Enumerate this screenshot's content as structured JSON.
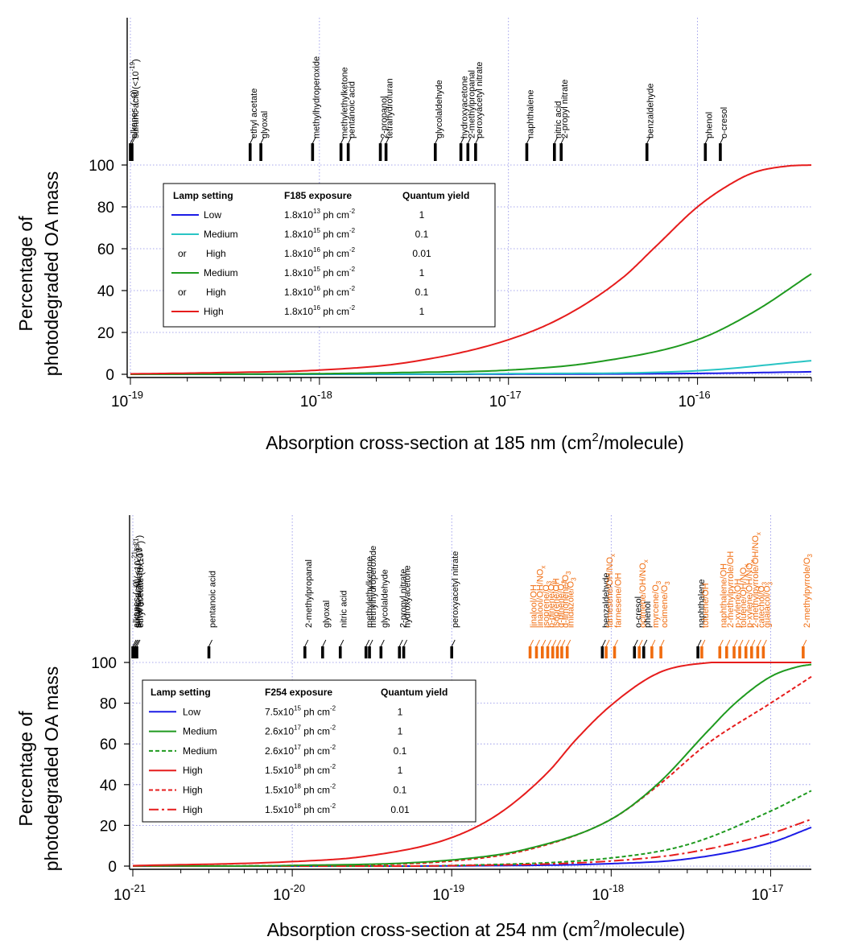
{
  "chart_data": [
    {
      "type": "line",
      "ylabel": [
        "Percentage of",
        "photodegraded OA mass"
      ],
      "xlabel": "Absorption cross-section at 185 nm (cm²/molecule)",
      "xscale": "log",
      "xlim": [
        1e-19,
        4e-16
      ],
      "ylim": [
        0,
        100
      ],
      "yticks": [
        0,
        20,
        40,
        60,
        80,
        100
      ],
      "xticks": [
        {
          "value": 1e-19,
          "mant": "10",
          "exp": "-19"
        },
        {
          "value": 1e-18,
          "mant": "10",
          "exp": "-18"
        },
        {
          "value": 1e-17,
          "mant": "10",
          "exp": "-17"
        },
        {
          "value": 1e-16,
          "mant": "10",
          "exp": "-16"
        }
      ],
      "grid": true,
      "legend": {
        "placement": "upper-left",
        "headers": [
          "Lamp setting",
          "F185 exposure",
          "Quantum yield"
        ],
        "rows": [
          {
            "prefix": "",
            "setting": "Low",
            "exp_mant": "1.8x10",
            "exp_pow": "13",
            "unit": " ph cm",
            "unit_pow": "-2",
            "qy": "1",
            "color": "#1c1ce6",
            "dash": "none"
          },
          {
            "prefix": "",
            "setting": "Medium",
            "exp_mant": "1.8x10",
            "exp_pow": "15",
            "unit": " ph cm",
            "unit_pow": "-2",
            "qy": "0.1",
            "color": "#29c4c4",
            "dash": "none"
          },
          {
            "prefix": "or",
            "setting": "High",
            "exp_mant": "1.8x10",
            "exp_pow": "16",
            "unit": " ph cm",
            "unit_pow": "-2",
            "qy": "0.01",
            "color": null,
            "dash": "none"
          },
          {
            "prefix": "",
            "setting": "Medium",
            "exp_mant": "1.8x10",
            "exp_pow": "15",
            "unit": " ph cm",
            "unit_pow": "-2",
            "qy": "1",
            "color": "#1f9a1f",
            "dash": "none"
          },
          {
            "prefix": "or",
            "setting": "High",
            "exp_mant": "1.8x10",
            "exp_pow": "16",
            "unit": " ph cm",
            "unit_pow": "-2",
            "qy": "0.1",
            "color": null,
            "dash": "none"
          },
          {
            "prefix": "",
            "setting": "High",
            "exp_mant": "1.8x10",
            "exp_pow": "16",
            "unit": " ph cm",
            "unit_pow": "-2",
            "qy": "1",
            "color": "#e61c1c",
            "dash": "none"
          }
        ]
      },
      "series": [
        {
          "color": "#1c1ce6",
          "dash": "none",
          "x": [
            1e-19,
            1e-18,
            1e-17,
            1e-16,
            4e-16
          ],
          "y": [
            0,
            0,
            0.05,
            0.4,
            1.2
          ]
        },
        {
          "color": "#29c4c4",
          "dash": "none",
          "x": [
            1e-19,
            1e-18,
            1e-17,
            1e-16,
            4e-16
          ],
          "y": [
            0,
            0.1,
            0.3,
            1.7,
            6.5
          ]
        },
        {
          "color": "#1f9a1f",
          "dash": "none",
          "x": [
            1e-19,
            1e-18,
            3e-18,
            1e-17,
            3e-17,
            1e-16,
            2e-16,
            4e-16
          ],
          "y": [
            0,
            0.3,
            0.9,
            2.0,
            6.0,
            16.5,
            30,
            48
          ]
        },
        {
          "color": "#e61c1c",
          "dash": "none",
          "x": [
            1e-19,
            3e-19,
            1e-18,
            3e-18,
            1e-17,
            2e-17,
            4e-17,
            6e-17,
            1e-16,
            1.5e-16,
            2e-16,
            3e-16,
            4e-16
          ],
          "y": [
            0.2,
            0.8,
            2.0,
            5.8,
            16.5,
            28,
            46,
            61,
            80,
            91,
            96.5,
            99.5,
            100
          ]
        }
      ],
      "compounds": [
        {
          "name": "alkanes (~0)",
          "x": 1e-19,
          "color": "#000000"
        },
        {
          "name": "sulfuric acid (<10",
          "sup": "-19",
          "suffix": ")",
          "x": 1.02e-19,
          "color": "#000000"
        },
        {
          "name": "ethyl acetate",
          "x": 4.3e-19,
          "color": "#000000"
        },
        {
          "name": "glyoxal",
          "x": 4.9e-19,
          "color": "#000000"
        },
        {
          "name": "methylhydroperoxide",
          "x": 9.2e-19,
          "color": "#000000"
        },
        {
          "name": "methylethylketone",
          "x": 1.3e-18,
          "color": "#000000"
        },
        {
          "name": "pentanoic acid",
          "x": 1.42e-18,
          "color": "#000000"
        },
        {
          "name": "2-propanol",
          "x": 2.1e-18,
          "color": "#000000"
        },
        {
          "name": "tetrahydrofuran",
          "x": 2.25e-18,
          "color": "#000000"
        },
        {
          "name": "glycolaldehyde",
          "x": 4.1e-18,
          "color": "#000000"
        },
        {
          "name": "hydroxyacetone",
          "x": 5.6e-18,
          "color": "#000000"
        },
        {
          "name": "2-methylpropanal",
          "x": 6.1e-18,
          "color": "#000000"
        },
        {
          "name": "peroxyacetyl nitrate",
          "x": 6.7e-18,
          "color": "#000000"
        },
        {
          "name": "naphthalene",
          "x": 1.25e-17,
          "color": "#000000"
        },
        {
          "name": "nitric acid",
          "x": 1.75e-17,
          "color": "#000000"
        },
        {
          "name": "2-propyl nitrate",
          "x": 1.9e-17,
          "color": "#000000"
        },
        {
          "name": "benzaldehyde",
          "x": 5.4e-17,
          "color": "#000000"
        },
        {
          "name": "phenol",
          "x": 1.1e-16,
          "color": "#000000"
        },
        {
          "name": "o-cresol",
          "x": 1.32e-16,
          "color": "#000000"
        }
      ]
    },
    {
      "type": "line",
      "ylabel": [
        "Percentage of",
        "photodegraded OA mass"
      ],
      "xlabel": "Absorption cross-section at 254 nm (cm²/molecule)",
      "xscale": "log",
      "xlim": [
        1e-21,
        1.8e-17
      ],
      "ylim": [
        0,
        100
      ],
      "yticks": [
        0,
        20,
        40,
        60,
        80,
        100
      ],
      "xticks": [
        {
          "value": 1e-21,
          "mant": "10",
          "exp": "-21"
        },
        {
          "value": 1e-20,
          "mant": "10",
          "exp": "-20"
        },
        {
          "value": 1e-19,
          "mant": "10",
          "exp": "-19"
        },
        {
          "value": 1e-18,
          "mant": "10",
          "exp": "-18"
        },
        {
          "value": 1e-17,
          "mant": "10",
          "exp": "-17"
        }
      ],
      "grid": true,
      "legend": {
        "placement": "upper-left",
        "headers": [
          "Lamp setting",
          "F254 exposure",
          "Quantum yield"
        ],
        "rows": [
          {
            "prefix": "",
            "setting": "Low",
            "exp_mant": "7.5x10",
            "exp_pow": "15",
            "unit": " ph cm",
            "unit_pow": "-2",
            "qy": "1",
            "color": "#1c1ce6",
            "dash": "none"
          },
          {
            "prefix": "",
            "setting": "Medium",
            "exp_mant": "2.6x10",
            "exp_pow": "17",
            "unit": " ph cm",
            "unit_pow": "-2",
            "qy": "1",
            "color": "#1f9a1f",
            "dash": "none"
          },
          {
            "prefix": "",
            "setting": "Medium",
            "exp_mant": "2.6x10",
            "exp_pow": "17",
            "unit": " ph cm",
            "unit_pow": "-2",
            "qy": "0.1",
            "color": "#1f9a1f",
            "dash": "short"
          },
          {
            "prefix": "",
            "setting": "High",
            "exp_mant": "1.5x10",
            "exp_pow": "18",
            "unit": " ph cm",
            "unit_pow": "-2",
            "qy": "1",
            "color": "#e61c1c",
            "dash": "none"
          },
          {
            "prefix": "",
            "setting": "High",
            "exp_mant": "1.5x10",
            "exp_pow": "18",
            "unit": " ph cm",
            "unit_pow": "-2",
            "qy": "0.1",
            "color": "#e61c1c",
            "dash": "short"
          },
          {
            "prefix": "",
            "setting": "High",
            "exp_mant": "1.5x10",
            "exp_pow": "18",
            "unit": " ph cm",
            "unit_pow": "-2",
            "qy": "0.01",
            "color": "#e61c1c",
            "dash": "long"
          }
        ]
      },
      "series": [
        {
          "color": "#1c1ce6",
          "dash": "none",
          "x": [
            1e-21,
            1e-20,
            1e-19,
            1e-18,
            3e-18,
            1e-17,
            1.8e-17
          ],
          "y": [
            0,
            0,
            0.1,
            1.2,
            3.5,
            11.5,
            19
          ]
        },
        {
          "color": "#1f9a1f",
          "dash": "short",
          "x": [
            1e-21,
            1e-20,
            1e-19,
            1e-18,
            3e-18,
            1e-17,
            1.8e-17
          ],
          "y": [
            0,
            0.1,
            0.3,
            4.0,
            10.5,
            27,
            37
          ]
        },
        {
          "color": "#e61c1c",
          "dash": "long",
          "x": [
            1e-21,
            1e-20,
            1e-19,
            1e-18,
            3e-18,
            1e-17,
            1.8e-17
          ],
          "y": [
            0,
            0,
            0.2,
            2.5,
            6.5,
            16,
            23
          ]
        },
        {
          "color": "#e61c1c",
          "dash": "short",
          "x": [
            1e-21,
            1e-20,
            1e-19,
            3e-19,
            1e-18,
            2e-18,
            4e-18,
            1e-17,
            1.8e-17
          ],
          "y": [
            0,
            0.3,
            2.5,
            8,
            23,
            40,
            60,
            80,
            93
          ]
        },
        {
          "color": "#1f9a1f",
          "dash": "none",
          "x": [
            1e-21,
            1e-20,
            1e-19,
            3e-19,
            1e-18,
            2e-18,
            4e-18,
            6e-18,
            1e-17,
            1.5e-17,
            1.8e-17
          ],
          "y": [
            0.1,
            0.3,
            3.0,
            8.5,
            23,
            41,
            66,
            80,
            93,
            98,
            99
          ]
        },
        {
          "color": "#e61c1c",
          "dash": "none",
          "x": [
            1e-21,
            1e-20,
            3e-20,
            1e-19,
            2e-19,
            4e-19,
            6e-19,
            1e-18,
            2e-18,
            4e-18,
            1.8e-17
          ],
          "y": [
            0.2,
            2.2,
            5,
            14,
            26,
            46,
            62,
            79,
            95,
            99.8,
            100
          ]
        }
      ],
      "compounds": [
        {
          "name": "alkanes (~0)",
          "x": 1e-21,
          "color": "#000000"
        },
        {
          "name": "sulfuric acid (<10",
          "sup": "-21",
          "suffix": ")",
          "x": 1.02e-21,
          "color": "#000000"
        },
        {
          "name": "tetrahydrofuran (<10",
          "sup": "-21",
          "suffix": ")",
          "x": 1.04e-21,
          "color": "#000000"
        },
        {
          "name": "ethyl acetate (5x10",
          "sup": "-22",
          "suffix": ")",
          "x": 1.06e-21,
          "color": "#000000"
        },
        {
          "name": "pentanoic acid",
          "x": 3e-21,
          "color": "#000000"
        },
        {
          "name": "2-methylpropanal",
          "x": 1.2e-20,
          "color": "#000000"
        },
        {
          "name": "glyoxal",
          "x": 1.55e-20,
          "color": "#000000"
        },
        {
          "name": "nitric acid",
          "x": 2e-20,
          "color": "#000000"
        },
        {
          "name": "methylethylketone",
          "x": 2.9e-20,
          "color": "#000000"
        },
        {
          "name": "methylhydroperoxide",
          "x": 3.05e-20,
          "color": "#000000"
        },
        {
          "name": "glycolaldehyde",
          "x": 3.6e-20,
          "color": "#000000"
        },
        {
          "name": "2-propyl nitrate",
          "x": 4.7e-20,
          "color": "#000000"
        },
        {
          "name": "hydroxyacetone",
          "x": 5e-20,
          "color": "#000000"
        },
        {
          "name": "peroxyacetyl nitrate",
          "x": 1e-19,
          "color": "#000000"
        },
        {
          "name": "linalool/OH",
          "x": 3.1e-19,
          "color": "#f06c0f"
        },
        {
          "name": "linalool/OH/NO",
          "sub": "x",
          "x": 3.4e-19,
          "color": "#f06c0f"
        },
        {
          "name": "isoprene/O",
          "sub": "3",
          "x": 3.7e-19,
          "color": "#f06c0f"
        },
        {
          "name": "b-pinene/O",
          "sub": "3",
          "x": 4e-19,
          "color": "#f06c0f"
        },
        {
          "name": "isoprene/OH",
          "x": 4.3e-19,
          "color": "#f06c0f"
        },
        {
          "name": "α-pinene/O",
          "sub": "3",
          "x": 4.6e-19,
          "color": "#f06c0f"
        },
        {
          "name": "d-limonene/O",
          "sub": "3",
          "x": 4.9e-19,
          "color": "#f06c0f"
        },
        {
          "name": "imidazole/O",
          "sub": "3",
          "x": 5.3e-19,
          "color": "#f06c0f"
        },
        {
          "name": "benzaldehyde",
          "x": 8.8e-19,
          "color": "#000000"
        },
        {
          "name": "farnesene/OH/NO",
          "sub": "x",
          "x": 9.3e-19,
          "color": "#f06c0f"
        },
        {
          "name": "farnesene/OH",
          "x": 1.05e-18,
          "color": "#f06c0f"
        },
        {
          "name": "o-cresol",
          "x": 1.4e-18,
          "color": "#000000"
        },
        {
          "name": "ocimene/OH/NO",
          "sub": "x",
          "x": 1.5e-18,
          "color": "#f06c0f"
        },
        {
          "name": "phenol",
          "x": 1.6e-18,
          "color": "#000000"
        },
        {
          "name": "myrcene/O",
          "sub": "3",
          "x": 1.8e-18,
          "color": "#f06c0f"
        },
        {
          "name": "ocimene/O",
          "sub": "3",
          "x": 2.05e-18,
          "color": "#f06c0f"
        },
        {
          "name": "naphthalene",
          "x": 3.5e-18,
          "color": "#000000"
        },
        {
          "name": "toluene/OH",
          "x": 3.7e-18,
          "color": "#f06c0f"
        },
        {
          "name": "naphthalene/OH",
          "x": 4.8e-18,
          "color": "#f06c0f"
        },
        {
          "name": "2-methylpyrrole/OH",
          "x": 5.3e-18,
          "color": "#f06c0f"
        },
        {
          "name": "p-xylene/OH",
          "x": 5.9e-18,
          "color": "#f06c0f"
        },
        {
          "name": "toluene/OH/NO",
          "sub": "x",
          "x": 6.4e-18,
          "color": "#f06c0f"
        },
        {
          "name": "p-xylene/OH/NO",
          "sub": "x",
          "x": 7e-18,
          "color": "#f06c0f"
        },
        {
          "name": "2-methylpyrrole/OH/NO",
          "sub": "x",
          "x": 7.6e-18,
          "color": "#f06c0f"
        },
        {
          "name": "catechol/O",
          "sub": "3",
          "x": 8.3e-18,
          "color": "#f06c0f"
        },
        {
          "name": "guaiacol/O",
          "sub": "3",
          "x": 9e-18,
          "color": "#f06c0f"
        },
        {
          "name": "2-methylpyrrole/O",
          "sub": "3",
          "x": 1.6e-17,
          "color": "#f06c0f"
        }
      ]
    }
  ]
}
